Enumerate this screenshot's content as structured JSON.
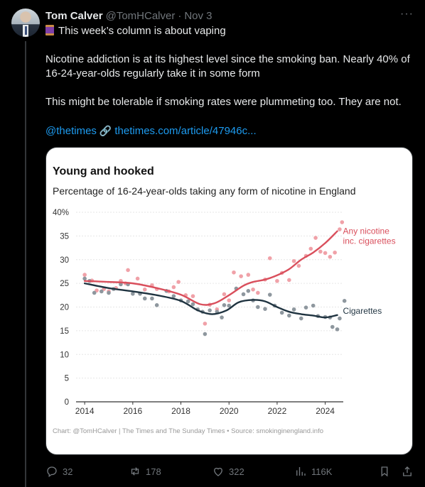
{
  "tweet": {
    "author_name": "Tom Calver",
    "handle": "@TomHCalver",
    "separator": "·",
    "date": "Nov 3",
    "more_label": "···",
    "line1": "This week’s column is about vaping",
    "para2": "Nicotine addiction is at its highest level since the smoking ban. Nearly 40% of 16-24-year-olds regularly take it in some form",
    "para3": "This might be tolerable if smoking rates were plummeting too. They are not.",
    "mention": "@thetimes",
    "link_icon": "🔗",
    "link": "thetimes.com/article/47946c..."
  },
  "actions": {
    "replies": "32",
    "reposts": "178",
    "likes": "322",
    "views": "116K"
  },
  "colors": {
    "any_nicotine": "#d94f5c",
    "any_nicotine_dots": "#f0a1a8",
    "cigarettes": "#1f3340",
    "cigarettes_dots": "#8e979e",
    "link": "#1d9bf0"
  },
  "chart_data": {
    "type": "line",
    "title": "Young and hooked",
    "subtitle": "Percentage of 16-24-year-olds taking any form of nicotine in England",
    "ylim": [
      0,
      40
    ],
    "y_ticks": [
      "0",
      "5",
      "10",
      "15",
      "20",
      "25",
      "30",
      "35",
      "40%"
    ],
    "xlim": [
      2013.7,
      2024.75
    ],
    "x_ticks": [
      "2014",
      "2016",
      "2018",
      "2020",
      "2022",
      "2024"
    ],
    "grid": true,
    "source": "Chart: @TomHCalver | The Times and The Sunday Times • Source: smokinginengland.info",
    "series": [
      {
        "name": "Any nicotine inc. cigarettes",
        "label_lines": [
          "Any nicotine",
          "inc. cigarettes"
        ],
        "trend": [
          [
            2014,
            25.5
          ],
          [
            2015,
            25.3
          ],
          [
            2016,
            25
          ],
          [
            2017,
            24
          ],
          [
            2018,
            22.6
          ],
          [
            2018.8,
            20.6
          ],
          [
            2019.4,
            20.8
          ],
          [
            2020,
            22.5
          ],
          [
            2020.6,
            24.5
          ],
          [
            2021,
            25.3
          ],
          [
            2021.5,
            25.8
          ],
          [
            2022,
            26.7
          ],
          [
            2022.5,
            28
          ],
          [
            2023,
            30
          ],
          [
            2023.5,
            31.5
          ],
          [
            2024,
            33.5
          ],
          [
            2024.5,
            36
          ]
        ],
        "points": [
          [
            2014,
            26.8
          ],
          [
            2014.3,
            25.6
          ],
          [
            2014.5,
            23.5
          ],
          [
            2014.8,
            23.8
          ],
          [
            2015,
            23.3
          ],
          [
            2015.3,
            24
          ],
          [
            2015.5,
            25.5
          ],
          [
            2015.7,
            25
          ],
          [
            2015.8,
            27.8
          ],
          [
            2016.2,
            26
          ],
          [
            2016.5,
            23.7
          ],
          [
            2016.8,
            24.6
          ],
          [
            2017,
            23.8
          ],
          [
            2017.5,
            23.3
          ],
          [
            2017.7,
            24.2
          ],
          [
            2017.9,
            25.3
          ],
          [
            2018.2,
            22.5
          ],
          [
            2018.5,
            22.3
          ],
          [
            2019,
            16.5
          ],
          [
            2019.2,
            20.5
          ],
          [
            2019.5,
            19.5
          ],
          [
            2019.8,
            22.7
          ],
          [
            2020,
            21.4
          ],
          [
            2020.2,
            27.3
          ],
          [
            2020.5,
            26.5
          ],
          [
            2020.8,
            26.8
          ],
          [
            2021,
            23.7
          ],
          [
            2021.2,
            23
          ],
          [
            2021.5,
            25.8
          ],
          [
            2021.7,
            30.3
          ],
          [
            2022,
            25.5
          ],
          [
            2022.2,
            27.2
          ],
          [
            2022.5,
            25.7
          ],
          [
            2022.7,
            29.7
          ],
          [
            2022.9,
            28.7
          ],
          [
            2023.2,
            30.8
          ],
          [
            2023.4,
            32.3
          ],
          [
            2023.6,
            34.6
          ],
          [
            2023.8,
            31.7
          ],
          [
            2024,
            31.4
          ],
          [
            2024.2,
            30.6
          ],
          [
            2024.4,
            31.5
          ],
          [
            2024.6,
            36.4
          ],
          [
            2024.7,
            37.9
          ]
        ]
      },
      {
        "name": "Cigarettes",
        "label_lines": [
          "Cigarettes"
        ],
        "trend": [
          [
            2014,
            25
          ],
          [
            2015,
            24
          ],
          [
            2016,
            23.3
          ],
          [
            2017,
            22.5
          ],
          [
            2018,
            21.3
          ],
          [
            2018.7,
            19.3
          ],
          [
            2019.3,
            18.5
          ],
          [
            2019.9,
            19.3
          ],
          [
            2020.4,
            21
          ],
          [
            2021,
            21.5
          ],
          [
            2021.5,
            21.2
          ],
          [
            2022,
            20
          ],
          [
            2022.5,
            19
          ],
          [
            2023,
            18.5
          ],
          [
            2023.5,
            18.2
          ],
          [
            2024,
            17.8
          ],
          [
            2024.5,
            18.3
          ]
        ],
        "points": [
          [
            2014,
            26
          ],
          [
            2014.2,
            25.5
          ],
          [
            2014.4,
            23
          ],
          [
            2014.7,
            23.3
          ],
          [
            2015,
            23
          ],
          [
            2015.2,
            23.8
          ],
          [
            2015.5,
            24.8
          ],
          [
            2015.8,
            24.8
          ],
          [
            2016,
            22.8
          ],
          [
            2016.3,
            22.8
          ],
          [
            2016.5,
            21.8
          ],
          [
            2016.8,
            21.8
          ],
          [
            2017,
            20.4
          ],
          [
            2017.4,
            23.4
          ],
          [
            2017.7,
            22.3
          ],
          [
            2018,
            21.4
          ],
          [
            2018.3,
            21.2
          ],
          [
            2018.5,
            20.6
          ],
          [
            2018.7,
            19.5
          ],
          [
            2018.9,
            19
          ],
          [
            2019,
            14.3
          ],
          [
            2019.2,
            19.3
          ],
          [
            2019.5,
            19
          ],
          [
            2019.7,
            17.8
          ],
          [
            2019.8,
            20.4
          ],
          [
            2020,
            20.3
          ],
          [
            2020.3,
            23.9
          ],
          [
            2020.6,
            22.7
          ],
          [
            2020.8,
            23.4
          ],
          [
            2021,
            21.4
          ],
          [
            2021.2,
            20
          ],
          [
            2021.5,
            19.6
          ],
          [
            2021.7,
            22.6
          ],
          [
            2021.9,
            20.3
          ],
          [
            2022.2,
            18.8
          ],
          [
            2022.5,
            18.2
          ],
          [
            2022.7,
            19.5
          ],
          [
            2023,
            17.6
          ],
          [
            2023.2,
            19.9
          ],
          [
            2023.5,
            20.3
          ],
          [
            2023.7,
            18.1
          ],
          [
            2024,
            17.9
          ],
          [
            2024.2,
            17.8
          ],
          [
            2024.3,
            15.8
          ],
          [
            2024.5,
            15.3
          ],
          [
            2024.6,
            17.6
          ],
          [
            2024.8,
            21.3
          ]
        ]
      }
    ]
  }
}
